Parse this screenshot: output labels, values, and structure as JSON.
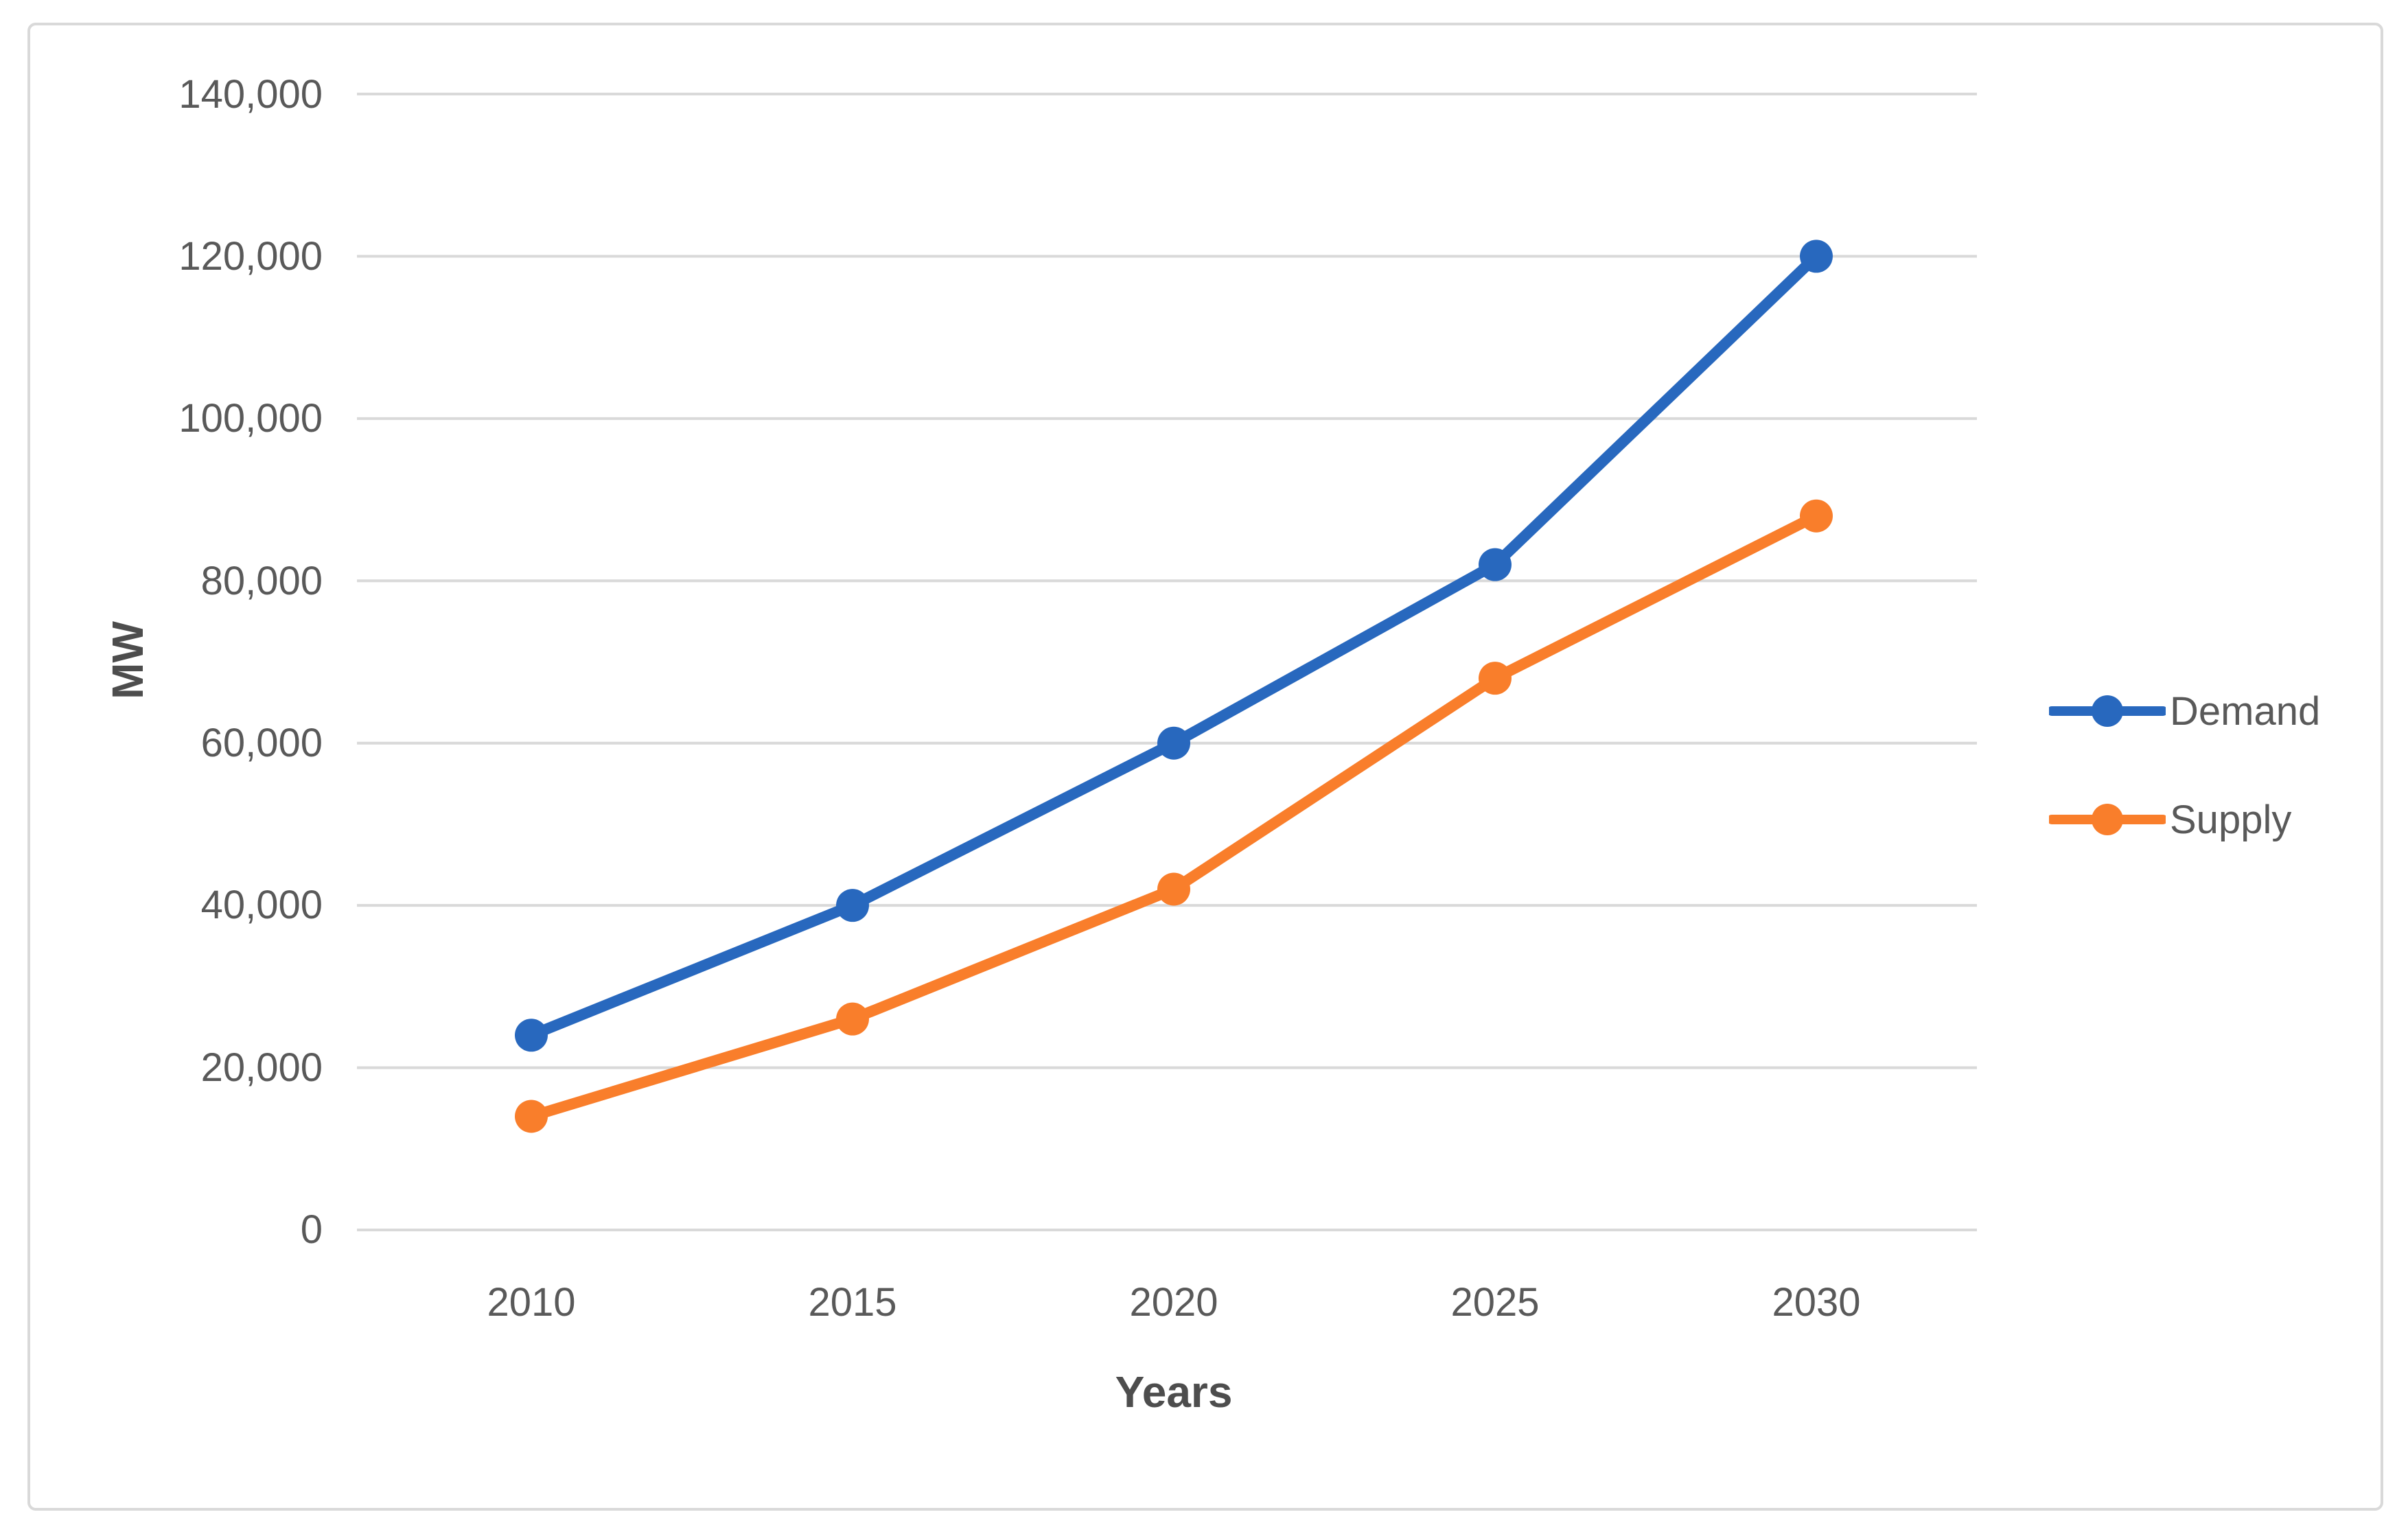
{
  "chart_data": {
    "type": "line",
    "title": "",
    "categories": [
      "2010",
      "2015",
      "2020",
      "2025",
      "2030"
    ],
    "series": [
      {
        "name": "Demand",
        "color": "#2868BE",
        "values": [
          24000,
          40000,
          60000,
          82000,
          120000
        ]
      },
      {
        "name": "Supply",
        "color": "#F97E2B",
        "values": [
          14000,
          26000,
          42000,
          68000,
          88000
        ]
      }
    ],
    "xlabel": "Years",
    "ylabel": "MW",
    "ylim": [
      0,
      140000
    ],
    "ytick_step": 20000,
    "ytick_labels": [
      "0",
      "20,000",
      "40,000",
      "60,000",
      "80,000",
      "100,000",
      "120,000",
      "140,000"
    ],
    "xtick_labels": [
      "2010",
      "2015",
      "2020",
      "2025",
      "2030"
    ],
    "grid": true,
    "legend_position": "right",
    "colors": {
      "grid": "#D9D9D9",
      "frame_border": "#D9D9D9",
      "tick_text": "#595959",
      "axis_title_text": "#4D4D4D",
      "background": "#FFFFFF"
    }
  }
}
